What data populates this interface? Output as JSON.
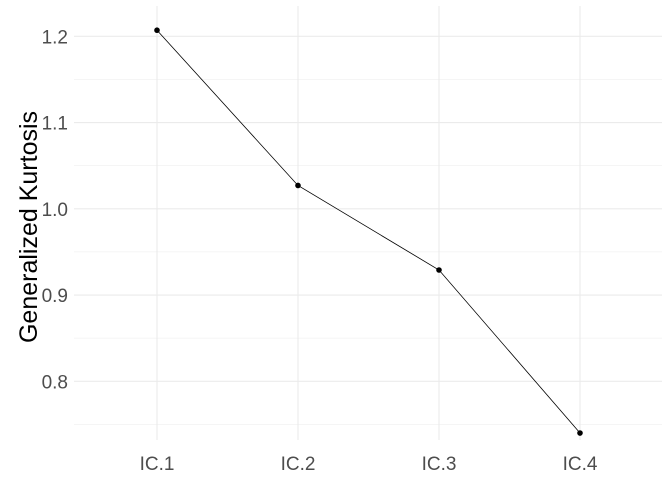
{
  "chart_data": {
    "type": "line",
    "title": "",
    "xlabel": "",
    "ylabel": "Generalized Kurtosis",
    "categories": [
      "IC.1",
      "IC.2",
      "IC.3",
      "IC.4"
    ],
    "series": [
      {
        "values": [
          1.207,
          1.027,
          0.929,
          0.74
        ]
      }
    ],
    "y_ticks": [
      "0.8",
      "0.9",
      "1.0",
      "1.1",
      "1.2"
    ],
    "ylim": [
      0.7377,
      1.2293
    ],
    "grid": true,
    "legend": "none",
    "colors": {
      "line": "#000000",
      "point": "#000000",
      "grid": "#ebebeb",
      "tick_text": "#4d4d4d"
    }
  }
}
